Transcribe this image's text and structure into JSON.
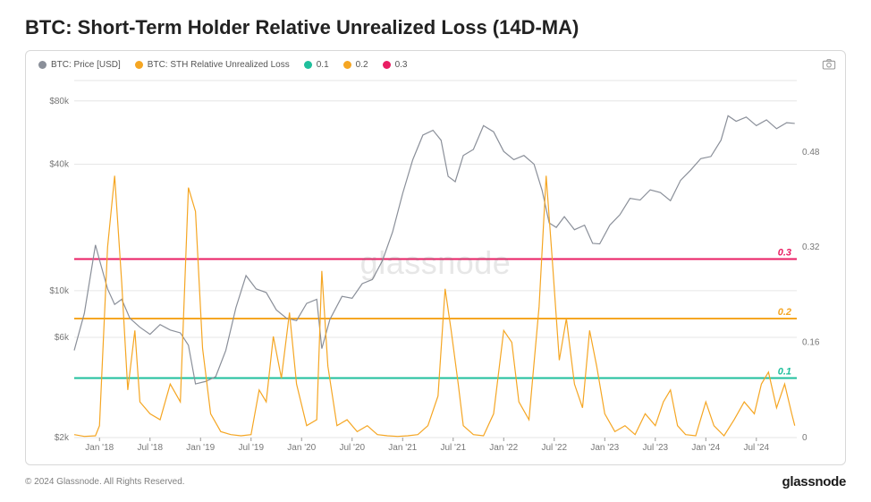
{
  "title": "BTC: Short-Term Holder Relative Unrealized Loss (14D-MA)",
  "watermark": "glassnode",
  "copyright": "© 2024 Glassnode. All Rights Reserved.",
  "brand": "glassnode",
  "legend": {
    "price": {
      "label": "BTC: Price [USD]",
      "color": "#8a8f99"
    },
    "sth": {
      "label": "BTC: STH Relative Unrealized Loss",
      "color": "#f5a623"
    },
    "l01": {
      "label": "0.1",
      "color": "#1fbf9c"
    },
    "l02": {
      "label": "0.2",
      "color": "#f5a623"
    },
    "l03": {
      "label": "0.3",
      "color": "#e91e63"
    }
  },
  "chart": {
    "type": "line",
    "background_color": "#ffffff",
    "grid_color": "#e6e6e6",
    "font_family": "sans-serif",
    "axis_fontsize": 10,
    "line_width": 1.2,
    "hline_width": 2,
    "x_axis": {
      "start_year": 2017.75,
      "end_year": 2024.9,
      "tick_labels": [
        "Jan '18",
        "Jul '18",
        "Jan '19",
        "Jul '19",
        "Jan '20",
        "Jul '20",
        "Jan '21",
        "Jul '21",
        "Jan '22",
        "Jul '22",
        "Jan '23",
        "Jul '23",
        "Jan '24",
        "Jul '24"
      ],
      "tick_positions": [
        2018.0,
        2018.5,
        2019.0,
        2019.5,
        2020.0,
        2020.5,
        2021.0,
        2021.5,
        2022.0,
        2022.5,
        2023.0,
        2023.5,
        2024.0,
        2024.5
      ]
    },
    "y_left": {
      "scale": "log",
      "min": 2000,
      "max": 100000,
      "tick_labels": [
        "$2k",
        "$6k",
        "$10k",
        "$40k",
        "$80k"
      ],
      "tick_values": [
        2000,
        6000,
        10000,
        40000,
        80000
      ]
    },
    "y_right": {
      "scale": "linear",
      "min": 0,
      "max": 0.6,
      "tick_labels": [
        "0",
        "0.16",
        "0.32",
        "0.48"
      ],
      "tick_values": [
        0,
        0.16,
        0.32,
        0.48
      ]
    },
    "hlines": [
      {
        "value": 0.1,
        "color": "#1fbf9c",
        "label": "0.1"
      },
      {
        "value": 0.2,
        "color": "#f5a623",
        "label": "0.2"
      },
      {
        "value": 0.3,
        "color": "#e91e63",
        "label": "0.3"
      }
    ],
    "series_price": {
      "color": "#8a8f99",
      "points": [
        [
          2017.75,
          5200
        ],
        [
          2017.85,
          7800
        ],
        [
          2017.96,
          16500
        ],
        [
          2018.0,
          14000
        ],
        [
          2018.08,
          10200
        ],
        [
          2018.15,
          8600
        ],
        [
          2018.22,
          9100
        ],
        [
          2018.3,
          7400
        ],
        [
          2018.4,
          6700
        ],
        [
          2018.5,
          6200
        ],
        [
          2018.6,
          6900
        ],
        [
          2018.7,
          6500
        ],
        [
          2018.8,
          6300
        ],
        [
          2018.88,
          5500
        ],
        [
          2018.95,
          3600
        ],
        [
          2019.05,
          3700
        ],
        [
          2019.15,
          3900
        ],
        [
          2019.25,
          5200
        ],
        [
          2019.35,
          8300
        ],
        [
          2019.45,
          11800
        ],
        [
          2019.55,
          10200
        ],
        [
          2019.65,
          9800
        ],
        [
          2019.75,
          8100
        ],
        [
          2019.85,
          7400
        ],
        [
          2019.95,
          7200
        ],
        [
          2020.05,
          8700
        ],
        [
          2020.15,
          9100
        ],
        [
          2020.2,
          5300
        ],
        [
          2020.28,
          7300
        ],
        [
          2020.4,
          9400
        ],
        [
          2020.5,
          9200
        ],
        [
          2020.6,
          10800
        ],
        [
          2020.7,
          11300
        ],
        [
          2020.8,
          13900
        ],
        [
          2020.9,
          19000
        ],
        [
          2021.0,
          29000
        ],
        [
          2021.1,
          42000
        ],
        [
          2021.2,
          55000
        ],
        [
          2021.3,
          58000
        ],
        [
          2021.38,
          52000
        ],
        [
          2021.45,
          35000
        ],
        [
          2021.52,
          33000
        ],
        [
          2021.6,
          44000
        ],
        [
          2021.7,
          47000
        ],
        [
          2021.8,
          61000
        ],
        [
          2021.9,
          57000
        ],
        [
          2022.0,
          46000
        ],
        [
          2022.1,
          42000
        ],
        [
          2022.2,
          44000
        ],
        [
          2022.3,
          40000
        ],
        [
          2022.38,
          30000
        ],
        [
          2022.45,
          21000
        ],
        [
          2022.52,
          20000
        ],
        [
          2022.6,
          22500
        ],
        [
          2022.7,
          19500
        ],
        [
          2022.8,
          20500
        ],
        [
          2022.88,
          16800
        ],
        [
          2022.95,
          16700
        ],
        [
          2023.05,
          20500
        ],
        [
          2023.15,
          23000
        ],
        [
          2023.25,
          27500
        ],
        [
          2023.35,
          27000
        ],
        [
          2023.45,
          30200
        ],
        [
          2023.55,
          29300
        ],
        [
          2023.65,
          26800
        ],
        [
          2023.75,
          33500
        ],
        [
          2023.85,
          37500
        ],
        [
          2023.95,
          42500
        ],
        [
          2024.05,
          43500
        ],
        [
          2024.15,
          52000
        ],
        [
          2024.22,
          68000
        ],
        [
          2024.3,
          64000
        ],
        [
          2024.4,
          67000
        ],
        [
          2024.5,
          61000
        ],
        [
          2024.6,
          65000
        ],
        [
          2024.7,
          59000
        ],
        [
          2024.8,
          63000
        ],
        [
          2024.88,
          62500
        ]
      ]
    },
    "series_sth": {
      "color": "#f5a623",
      "points": [
        [
          2017.75,
          0.005
        ],
        [
          2017.85,
          0.002
        ],
        [
          2017.96,
          0.003
        ],
        [
          2018.0,
          0.02
        ],
        [
          2018.08,
          0.32
        ],
        [
          2018.15,
          0.44
        ],
        [
          2018.22,
          0.26
        ],
        [
          2018.28,
          0.08
        ],
        [
          2018.35,
          0.18
        ],
        [
          2018.4,
          0.06
        ],
        [
          2018.5,
          0.04
        ],
        [
          2018.6,
          0.03
        ],
        [
          2018.7,
          0.09
        ],
        [
          2018.8,
          0.06
        ],
        [
          2018.88,
          0.42
        ],
        [
          2018.95,
          0.38
        ],
        [
          2019.02,
          0.15
        ],
        [
          2019.1,
          0.04
        ],
        [
          2019.2,
          0.01
        ],
        [
          2019.3,
          0.005
        ],
        [
          2019.4,
          0.003
        ],
        [
          2019.5,
          0.005
        ],
        [
          2019.58,
          0.08
        ],
        [
          2019.65,
          0.06
        ],
        [
          2019.72,
          0.17
        ],
        [
          2019.8,
          0.1
        ],
        [
          2019.88,
          0.21
        ],
        [
          2019.95,
          0.09
        ],
        [
          2020.05,
          0.02
        ],
        [
          2020.15,
          0.03
        ],
        [
          2020.2,
          0.28
        ],
        [
          2020.26,
          0.12
        ],
        [
          2020.35,
          0.02
        ],
        [
          2020.45,
          0.03
        ],
        [
          2020.55,
          0.01
        ],
        [
          2020.65,
          0.02
        ],
        [
          2020.75,
          0.005
        ],
        [
          2020.85,
          0.003
        ],
        [
          2020.95,
          0.002
        ],
        [
          2021.05,
          0.003
        ],
        [
          2021.15,
          0.005
        ],
        [
          2021.25,
          0.02
        ],
        [
          2021.35,
          0.07
        ],
        [
          2021.42,
          0.25
        ],
        [
          2021.48,
          0.18
        ],
        [
          2021.55,
          0.09
        ],
        [
          2021.6,
          0.02
        ],
        [
          2021.7,
          0.005
        ],
        [
          2021.8,
          0.003
        ],
        [
          2021.9,
          0.04
        ],
        [
          2022.0,
          0.18
        ],
        [
          2022.08,
          0.16
        ],
        [
          2022.15,
          0.06
        ],
        [
          2022.25,
          0.03
        ],
        [
          2022.35,
          0.22
        ],
        [
          2022.42,
          0.44
        ],
        [
          2022.48,
          0.3
        ],
        [
          2022.55,
          0.13
        ],
        [
          2022.62,
          0.2
        ],
        [
          2022.7,
          0.09
        ],
        [
          2022.78,
          0.05
        ],
        [
          2022.85,
          0.18
        ],
        [
          2022.92,
          0.12
        ],
        [
          2023.0,
          0.04
        ],
        [
          2023.1,
          0.01
        ],
        [
          2023.2,
          0.02
        ],
        [
          2023.3,
          0.005
        ],
        [
          2023.4,
          0.04
        ],
        [
          2023.5,
          0.02
        ],
        [
          2023.58,
          0.06
        ],
        [
          2023.65,
          0.08
        ],
        [
          2023.72,
          0.02
        ],
        [
          2023.8,
          0.005
        ],
        [
          2023.9,
          0.003
        ],
        [
          2024.0,
          0.06
        ],
        [
          2024.08,
          0.02
        ],
        [
          2024.18,
          0.003
        ],
        [
          2024.28,
          0.03
        ],
        [
          2024.38,
          0.06
        ],
        [
          2024.48,
          0.04
        ],
        [
          2024.55,
          0.09
        ],
        [
          2024.62,
          0.11
        ],
        [
          2024.7,
          0.05
        ],
        [
          2024.78,
          0.09
        ],
        [
          2024.85,
          0.04
        ],
        [
          2024.88,
          0.02
        ]
      ]
    }
  }
}
